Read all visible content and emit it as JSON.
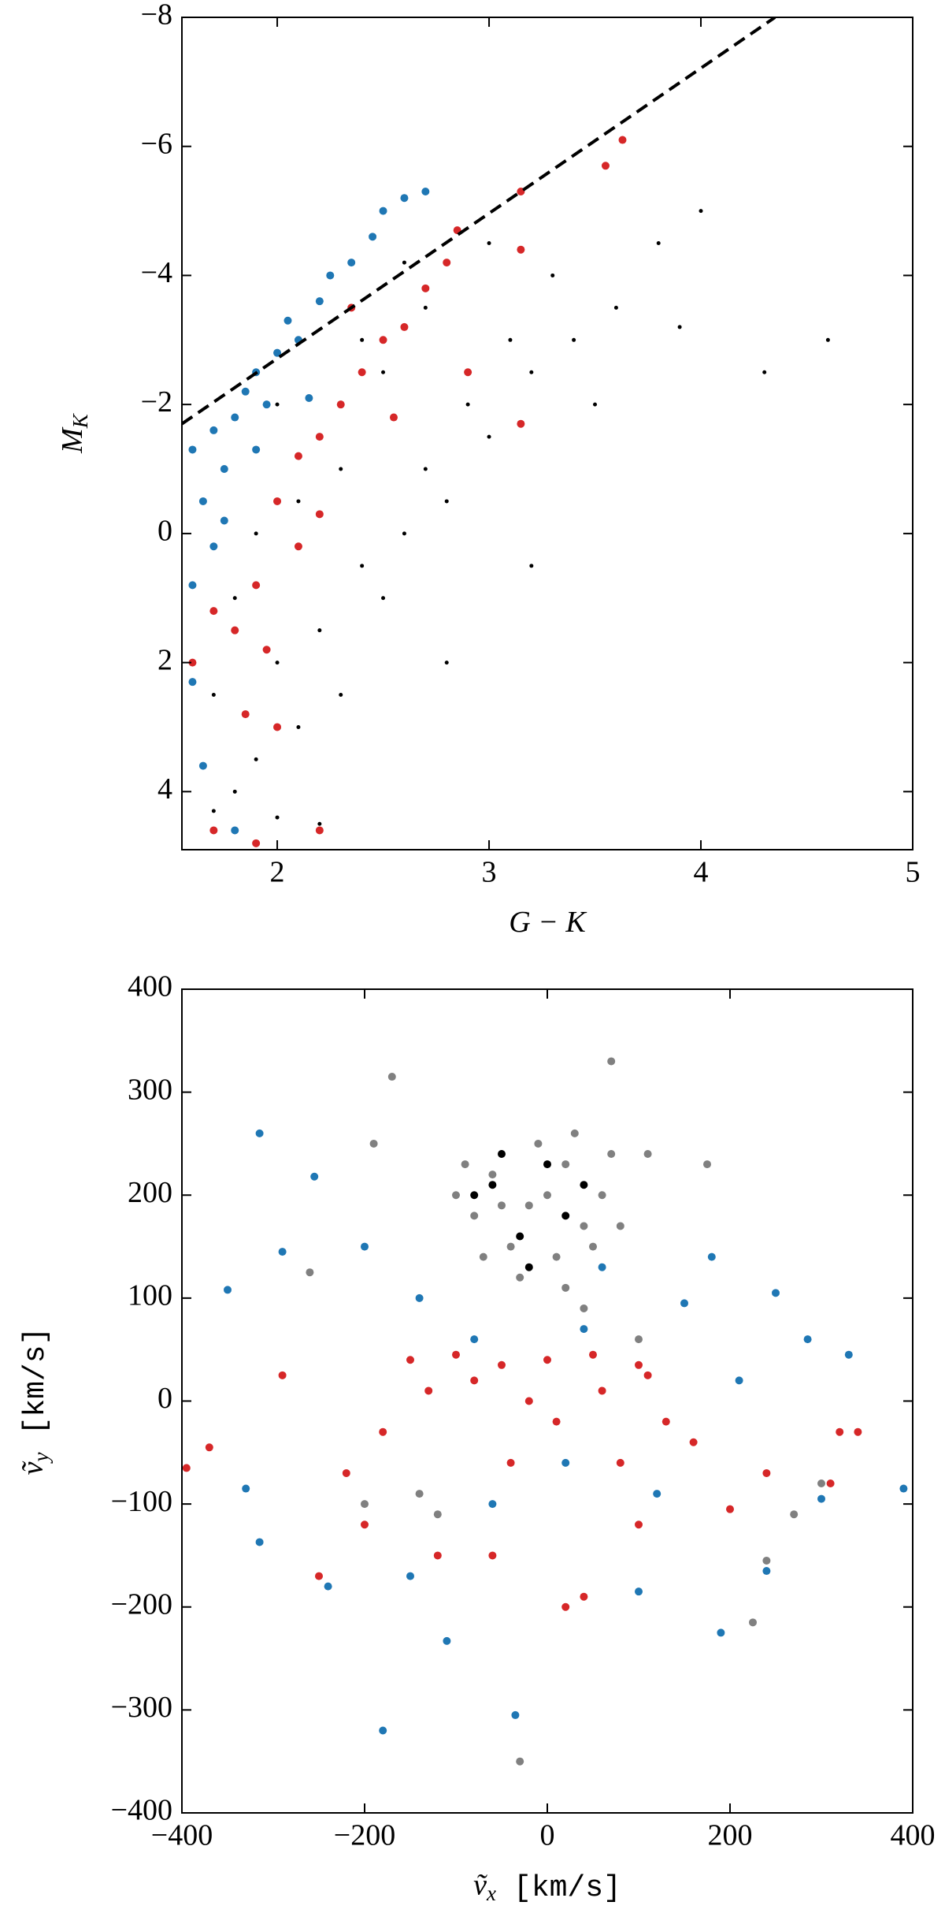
{
  "chart_data": [
    {
      "type": "scatter",
      "xlabel": {
        "symbol": "G − K"
      },
      "ylabel": {
        "symbol": "M",
        "sub": "K"
      },
      "xlim": [
        1.55,
        5
      ],
      "ylim": [
        4.9,
        -8
      ],
      "xticks": [
        2,
        3,
        4,
        5
      ],
      "yticks": [
        {
          "value": -8,
          "label": "−8"
        },
        {
          "value": -6,
          "label": "−6"
        },
        {
          "value": -4,
          "label": "−4"
        },
        {
          "value": -2,
          "label": "−2"
        },
        0,
        2,
        4
      ],
      "dashed_line": {
        "x": [
          1.55,
          4.35
        ],
        "y": [
          -1.7,
          -8
        ]
      },
      "series": [
        {
          "color": "#000000",
          "x": [
            1.7,
            1.8,
            2.0,
            2.2,
            1.9,
            2.1,
            2.3,
            2.0,
            2.2,
            2.5,
            2.4,
            2.6,
            2.8,
            2.7,
            3.0,
            2.9,
            3.2,
            3.1,
            3.4,
            3.6,
            3.3,
            3.8,
            4.0,
            3.5,
            3.9,
            4.3,
            2.3,
            2.5,
            2.1,
            1.8,
            1.7,
            1.9,
            2.4,
            2.7,
            3.0,
            4.6,
            3.2,
            2.8,
            2.0,
            2.6
          ],
          "y": [
            4.3,
            4.0,
            4.4,
            4.5,
            3.5,
            3.0,
            2.5,
            2.0,
            1.5,
            1.0,
            0.5,
            0,
            -0.5,
            -1.0,
            -1.5,
            -2.0,
            -2.5,
            -3.0,
            -3.0,
            -3.5,
            -4.0,
            -4.5,
            -5.0,
            -2.0,
            -3.2,
            -2.5,
            -1.0,
            -2.5,
            -0.5,
            1.0,
            2.5,
            0.0,
            -3.0,
            -3.5,
            -4.5,
            -3.0,
            0.5,
            2.0,
            -2.0,
            -4.2
          ]
        },
        {
          "color": "#1f77b4",
          "x": [
            1.6,
            1.65,
            1.7,
            1.6,
            1.75,
            1.8,
            1.85,
            1.9,
            1.95,
            2.0,
            2.05,
            2.1,
            2.2,
            2.25,
            2.35,
            2.45,
            2.5,
            2.6,
            2.7,
            1.7,
            1.6,
            1.65,
            1.8,
            1.75,
            1.9,
            2.15
          ],
          "y": [
            -1.3,
            -0.5,
            0.2,
            0.8,
            -1.0,
            -1.8,
            -2.2,
            -2.5,
            -2.0,
            -2.8,
            -3.3,
            -3.0,
            -3.6,
            -4.0,
            -4.2,
            -4.6,
            -5.0,
            -5.2,
            -5.3,
            -1.6,
            2.3,
            3.6,
            4.6,
            -0.2,
            -1.3,
            -2.1
          ]
        },
        {
          "color": "#d62728",
          "x": [
            1.6,
            1.7,
            1.8,
            1.9,
            2.0,
            2.1,
            2.2,
            2.3,
            2.4,
            2.5,
            2.6,
            2.7,
            2.8,
            2.9,
            3.15,
            3.15,
            3.55,
            3.63,
            2.85,
            3.15,
            2.0,
            1.9,
            1.7,
            2.2,
            2.1,
            2.35,
            1.85,
            2.55,
            2.2,
            1.95
          ],
          "y": [
            2.0,
            1.2,
            1.5,
            0.8,
            -0.5,
            -1.2,
            -1.5,
            -2.0,
            -2.5,
            -3.0,
            -3.2,
            -3.8,
            -4.2,
            -2.5,
            -4.4,
            -5.3,
            -5.7,
            -6.1,
            -4.7,
            -1.7,
            3.0,
            4.8,
            4.6,
            4.6,
            0.2,
            -3.5,
            2.8,
            -1.8,
            -0.3,
            1.8
          ]
        }
      ]
    },
    {
      "type": "scatter",
      "xlabel": {
        "symbol": "ṽ",
        "sub": "x",
        "unit": "[km/s]"
      },
      "ylabel": {
        "symbol": "ṽ",
        "sub": "y",
        "unit": "[km/s]"
      },
      "xlim": [
        -400,
        400
      ],
      "ylim": [
        -400,
        400
      ],
      "xticks": [
        {
          "value": -400,
          "label": "−400"
        },
        {
          "value": -200,
          "label": "−200"
        },
        0,
        200,
        400
      ],
      "yticks": [
        {
          "value": -400,
          "label": "−400"
        },
        {
          "value": -300,
          "label": "−300"
        },
        {
          "value": -200,
          "label": "−200"
        },
        {
          "value": -100,
          "label": "−100"
        },
        0,
        100,
        200,
        300,
        400
      ],
      "series": [
        {
          "color": "#808080",
          "x": [
            -20,
            -60,
            20,
            40,
            -80,
            -40,
            10,
            60,
            -90,
            -10,
            50,
            -70,
            30,
            0,
            -50,
            70,
            -100,
            20,
            -30,
            80,
            -170,
            70,
            -190,
            -260,
            110,
            175,
            -120,
            -30,
            225,
            300,
            270,
            -140,
            240,
            -200,
            40,
            100
          ],
          "y": [
            190,
            220,
            230,
            170,
            180,
            150,
            140,
            200,
            230,
            250,
            150,
            140,
            260,
            200,
            190,
            240,
            200,
            110,
            120,
            170,
            315,
            330,
            250,
            125,
            240,
            230,
            -110,
            -350,
            -215,
            -80,
            -110,
            -90,
            -155,
            -100,
            90,
            60
          ]
        },
        {
          "color": "#000000",
          "x": [
            -60,
            -30,
            20,
            -80,
            0,
            40,
            -20,
            -50
          ],
          "y": [
            210,
            160,
            180,
            200,
            230,
            210,
            130,
            240
          ]
        },
        {
          "color": "#1f77b4",
          "x": [
            -315,
            -255,
            -330,
            -315,
            -240,
            -180,
            -110,
            -35,
            100,
            190,
            240,
            300,
            390,
            330,
            285,
            250,
            -350,
            -290,
            -200,
            -140,
            60,
            150,
            180,
            -60,
            20,
            120,
            -150,
            -80,
            40,
            210
          ],
          "y": [
            260,
            218,
            -85,
            -137,
            -180,
            -320,
            -233,
            -305,
            -185,
            -225,
            -165,
            -95,
            -85,
            45,
            60,
            105,
            108,
            145,
            150,
            100,
            130,
            95,
            140,
            -100,
            -60,
            -90,
            -170,
            60,
            70,
            20
          ]
        },
        {
          "color": "#d62728",
          "x": [
            -395,
            -370,
            -290,
            -250,
            -200,
            -120,
            -60,
            20,
            40,
            100,
            200,
            240,
            310,
            340,
            320,
            -150,
            -100,
            -50,
            0,
            50,
            100,
            -80,
            -20,
            60,
            130,
            -180,
            -40,
            80,
            160,
            -220,
            10,
            110,
            -130
          ],
          "y": [
            -65,
            -45,
            25,
            -170,
            -120,
            -150,
            -150,
            -200,
            -190,
            -120,
            -105,
            -70,
            -80,
            -30,
            -30,
            40,
            45,
            35,
            40,
            45,
            35,
            20,
            0,
            10,
            -20,
            -30,
            -60,
            -60,
            -40,
            -70,
            -20,
            25,
            10
          ]
        }
      ]
    }
  ]
}
